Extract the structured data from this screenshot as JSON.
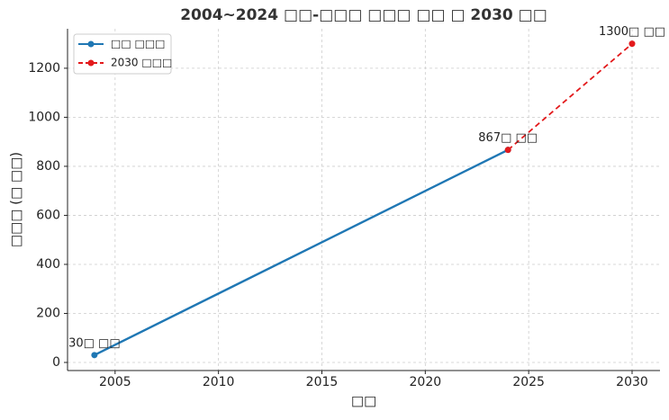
{
  "chart_data": {
    "type": "line",
    "title": "2004~2024 □□-□□□ □□□ □□ □ 2030 □□",
    "x_label": "□□",
    "y_label": "□□□ (□ □□)",
    "series": [
      {
        "name": "□□ □□□",
        "color": "#1f77b4",
        "dash": false,
        "x": [
          2004,
          2024
        ],
        "values": [
          30,
          867
        ],
        "value_labels": [
          "30□ □□",
          null
        ]
      },
      {
        "name": "2030 □□□",
        "color": "#e31a1c",
        "dash": true,
        "x": [
          2024,
          2030
        ],
        "values": [
          867,
          1300
        ],
        "value_labels": [
          "867□ □□",
          "1300□ □□"
        ]
      }
    ],
    "xlim": [
      2002.7,
      2031.35
    ],
    "xticks": [
      2005,
      2010,
      2015,
      2020,
      2025,
      2030
    ],
    "ylim": [
      -33,
      1361
    ],
    "yticks": [
      0,
      200,
      400,
      600,
      800,
      1000,
      1200
    ],
    "grid": true,
    "legend": "upper left"
  }
}
